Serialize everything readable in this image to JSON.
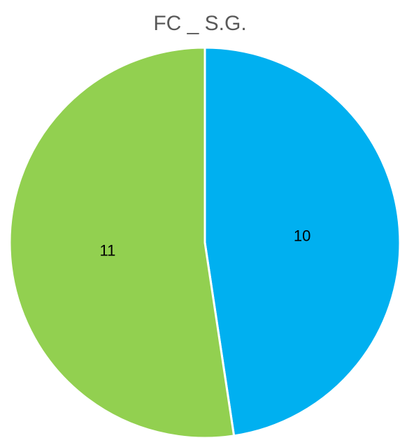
{
  "chart_data": {
    "type": "pie",
    "title": "FC _ S.G.",
    "slices": [
      {
        "value": 10,
        "label": "10",
        "color": "#00B0F0"
      },
      {
        "value": 11,
        "label": "11",
        "color": "#92D050"
      }
    ],
    "start_angle_deg": 0,
    "direction": "clockwise",
    "legend": "none"
  }
}
